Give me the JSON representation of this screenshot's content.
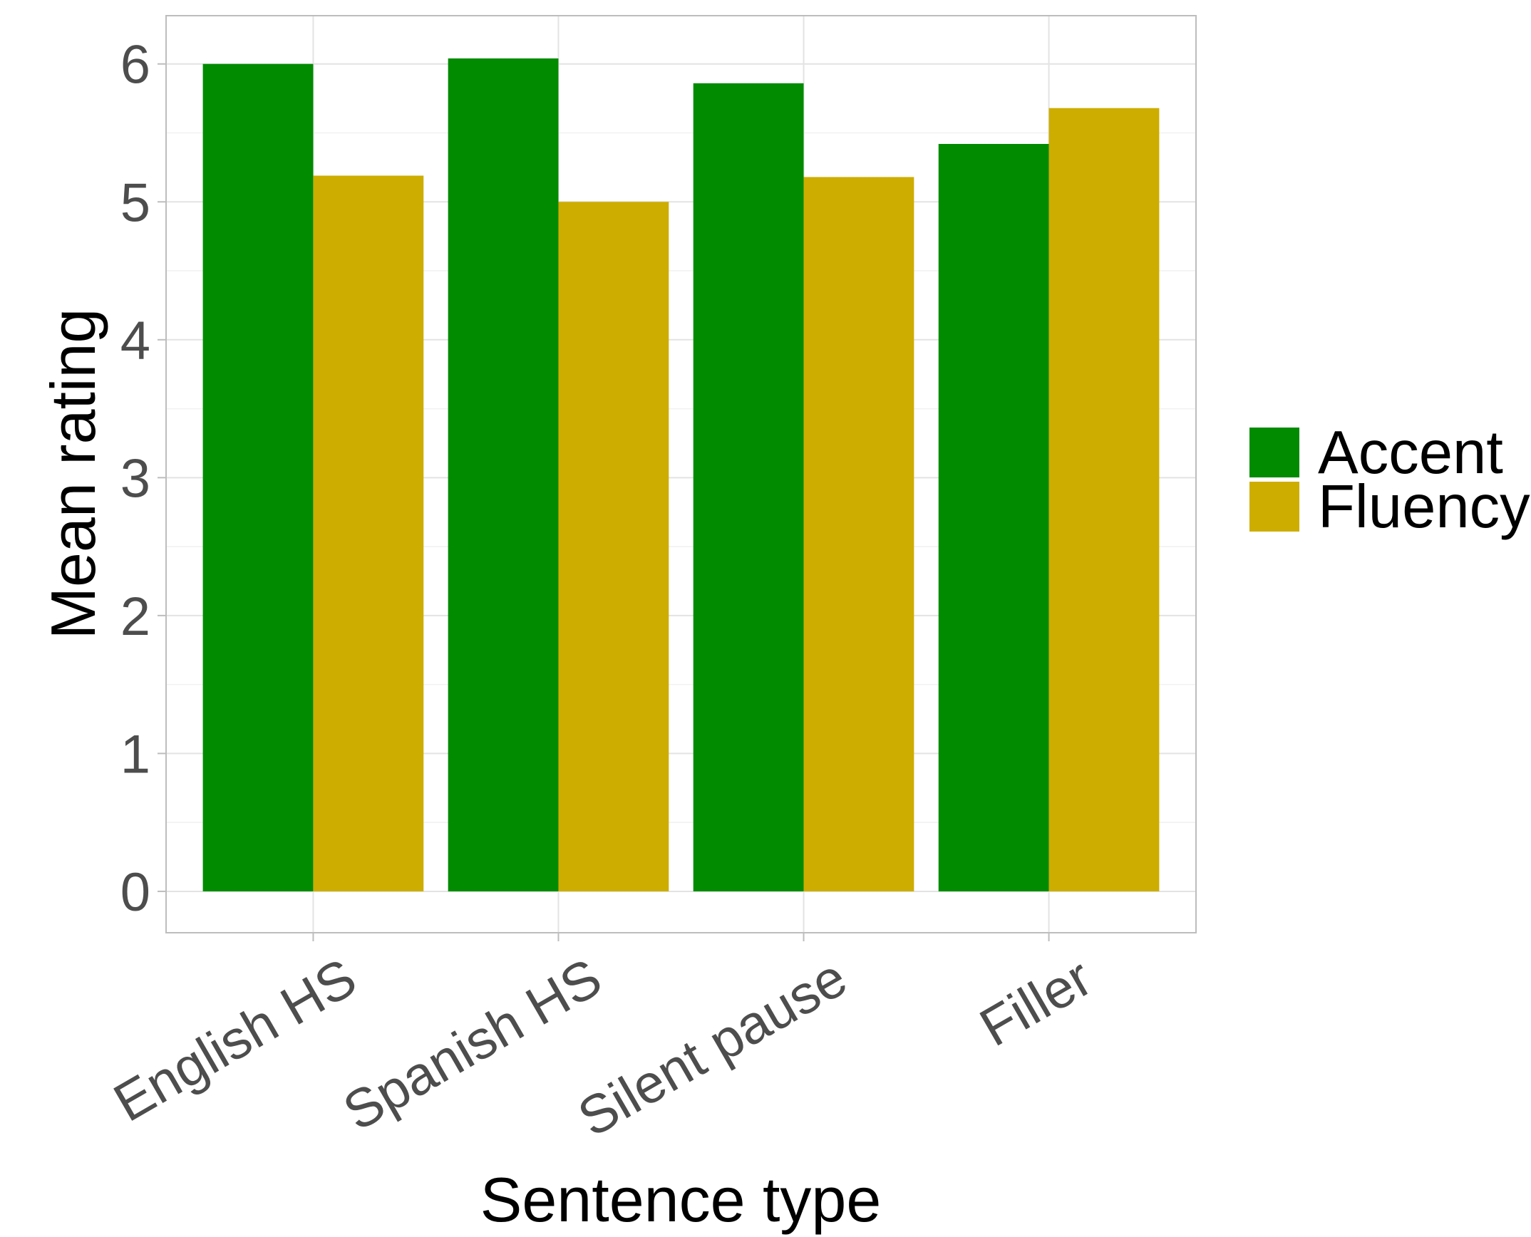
{
  "chart_data": {
    "type": "bar",
    "categories": [
      "English HS",
      "Spanish HS",
      "Silent pause",
      "Filler"
    ],
    "series": [
      {
        "name": "Accent",
        "color": "#008b00",
        "values": [
          6.0,
          6.04,
          5.86,
          5.42
        ]
      },
      {
        "name": "Fluency",
        "color": "#cdad00",
        "values": [
          5.19,
          5.0,
          5.18,
          5.68
        ]
      }
    ],
    "title": "",
    "xlabel": "Sentence type",
    "ylabel": "Mean rating",
    "ylim": [
      -0.3,
      6.35
    ],
    "yticks": [
      0,
      1,
      2,
      3,
      4,
      5,
      6
    ],
    "grid": true,
    "legend": "right"
  }
}
